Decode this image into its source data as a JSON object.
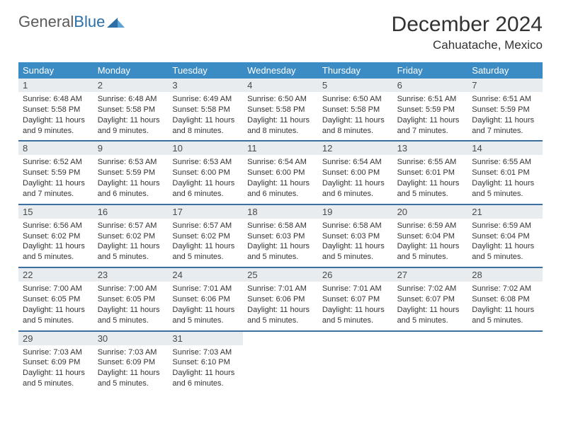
{
  "brand": {
    "word1": "General",
    "word2": "Blue"
  },
  "title": "December 2024",
  "location": "Cahuatache, Mexico",
  "colors": {
    "header_bg": "#3b8bc4",
    "header_text": "#ffffff",
    "daynum_bg": "#e9ecef",
    "week_border": "#3b6fa0",
    "body_text": "#333333",
    "brand_gray": "#5a5a5a",
    "brand_blue": "#2f6fa7"
  },
  "weekdays": [
    "Sunday",
    "Monday",
    "Tuesday",
    "Wednesday",
    "Thursday",
    "Friday",
    "Saturday"
  ],
  "weeks": [
    [
      {
        "n": "1",
        "sr": "6:48 AM",
        "ss": "5:58 PM",
        "dh": "11",
        "dm": "9"
      },
      {
        "n": "2",
        "sr": "6:48 AM",
        "ss": "5:58 PM",
        "dh": "11",
        "dm": "9"
      },
      {
        "n": "3",
        "sr": "6:49 AM",
        "ss": "5:58 PM",
        "dh": "11",
        "dm": "8"
      },
      {
        "n": "4",
        "sr": "6:50 AM",
        "ss": "5:58 PM",
        "dh": "11",
        "dm": "8"
      },
      {
        "n": "5",
        "sr": "6:50 AM",
        "ss": "5:58 PM",
        "dh": "11",
        "dm": "8"
      },
      {
        "n": "6",
        "sr": "6:51 AM",
        "ss": "5:59 PM",
        "dh": "11",
        "dm": "7"
      },
      {
        "n": "7",
        "sr": "6:51 AM",
        "ss": "5:59 PM",
        "dh": "11",
        "dm": "7"
      }
    ],
    [
      {
        "n": "8",
        "sr": "6:52 AM",
        "ss": "5:59 PM",
        "dh": "11",
        "dm": "7"
      },
      {
        "n": "9",
        "sr": "6:53 AM",
        "ss": "5:59 PM",
        "dh": "11",
        "dm": "6"
      },
      {
        "n": "10",
        "sr": "6:53 AM",
        "ss": "6:00 PM",
        "dh": "11",
        "dm": "6"
      },
      {
        "n": "11",
        "sr": "6:54 AM",
        "ss": "6:00 PM",
        "dh": "11",
        "dm": "6"
      },
      {
        "n": "12",
        "sr": "6:54 AM",
        "ss": "6:00 PM",
        "dh": "11",
        "dm": "6"
      },
      {
        "n": "13",
        "sr": "6:55 AM",
        "ss": "6:01 PM",
        "dh": "11",
        "dm": "5"
      },
      {
        "n": "14",
        "sr": "6:55 AM",
        "ss": "6:01 PM",
        "dh": "11",
        "dm": "5"
      }
    ],
    [
      {
        "n": "15",
        "sr": "6:56 AM",
        "ss": "6:02 PM",
        "dh": "11",
        "dm": "5"
      },
      {
        "n": "16",
        "sr": "6:57 AM",
        "ss": "6:02 PM",
        "dh": "11",
        "dm": "5"
      },
      {
        "n": "17",
        "sr": "6:57 AM",
        "ss": "6:02 PM",
        "dh": "11",
        "dm": "5"
      },
      {
        "n": "18",
        "sr": "6:58 AM",
        "ss": "6:03 PM",
        "dh": "11",
        "dm": "5"
      },
      {
        "n": "19",
        "sr": "6:58 AM",
        "ss": "6:03 PM",
        "dh": "11",
        "dm": "5"
      },
      {
        "n": "20",
        "sr": "6:59 AM",
        "ss": "6:04 PM",
        "dh": "11",
        "dm": "5"
      },
      {
        "n": "21",
        "sr": "6:59 AM",
        "ss": "6:04 PM",
        "dh": "11",
        "dm": "5"
      }
    ],
    [
      {
        "n": "22",
        "sr": "7:00 AM",
        "ss": "6:05 PM",
        "dh": "11",
        "dm": "5"
      },
      {
        "n": "23",
        "sr": "7:00 AM",
        "ss": "6:05 PM",
        "dh": "11",
        "dm": "5"
      },
      {
        "n": "24",
        "sr": "7:01 AM",
        "ss": "6:06 PM",
        "dh": "11",
        "dm": "5"
      },
      {
        "n": "25",
        "sr": "7:01 AM",
        "ss": "6:06 PM",
        "dh": "11",
        "dm": "5"
      },
      {
        "n": "26",
        "sr": "7:01 AM",
        "ss": "6:07 PM",
        "dh": "11",
        "dm": "5"
      },
      {
        "n": "27",
        "sr": "7:02 AM",
        "ss": "6:07 PM",
        "dh": "11",
        "dm": "5"
      },
      {
        "n": "28",
        "sr": "7:02 AM",
        "ss": "6:08 PM",
        "dh": "11",
        "dm": "5"
      }
    ],
    [
      {
        "n": "29",
        "sr": "7:03 AM",
        "ss": "6:09 PM",
        "dh": "11",
        "dm": "5"
      },
      {
        "n": "30",
        "sr": "7:03 AM",
        "ss": "6:09 PM",
        "dh": "11",
        "dm": "5"
      },
      {
        "n": "31",
        "sr": "7:03 AM",
        "ss": "6:10 PM",
        "dh": "11",
        "dm": "6"
      },
      null,
      null,
      null,
      null
    ]
  ],
  "labels": {
    "sunrise": "Sunrise:",
    "sunset": "Sunset:",
    "daylight_prefix": "Daylight:",
    "hours_word": "hours",
    "and_word": "and",
    "minutes_word": "minutes."
  }
}
